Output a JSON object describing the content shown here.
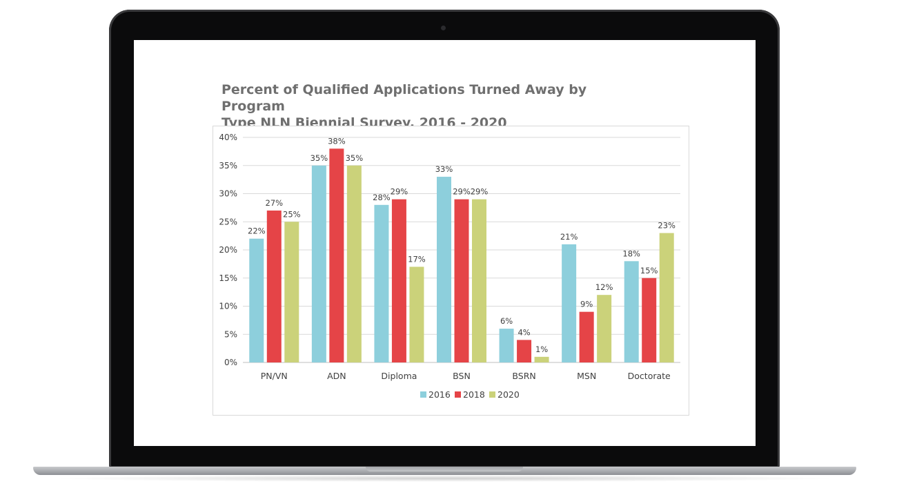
{
  "chart_data": {
    "type": "bar",
    "title": "Percent of Qualified Applications Turned Away by Program Type NLN Biennial Survey, 2016 - 2020",
    "title_lines": [
      "Percent of Qualified Applications Turned Away by Program",
      "Type NLN Biennial Survey, 2016 - 2020"
    ],
    "categories": [
      "PN/VN",
      "ADN",
      "Diploma",
      "BSN",
      "BSRN",
      "MSN",
      "Doctorate"
    ],
    "series": [
      {
        "name": "2016",
        "color": "#8dcfdc",
        "values": [
          22,
          35,
          28,
          33,
          6,
          21,
          18
        ]
      },
      {
        "name": "2018",
        "color": "#e54447",
        "values": [
          27,
          38,
          29,
          29,
          4,
          9,
          15
        ]
      },
      {
        "name": "2020",
        "color": "#cbd27a",
        "values": [
          25,
          35,
          17,
          29,
          1,
          12,
          23
        ]
      }
    ],
    "ylim": [
      0,
      40
    ],
    "ytick_labels": [
      "0%",
      "5%",
      "10%",
      "15%",
      "20%",
      "25%",
      "30%",
      "35%",
      "40%"
    ],
    "data_labels": [
      [
        "22%",
        "35%",
        "28%",
        "33%",
        "6%",
        "21%",
        "18%"
      ],
      [
        "27%",
        "38%",
        "29%",
        "29%",
        "4%",
        "9%",
        "15%"
      ],
      [
        "25%",
        "35%",
        "17%",
        "29%",
        "1%",
        "12%",
        "23%"
      ]
    ],
    "grid": true,
    "legend_position": "bottom"
  }
}
